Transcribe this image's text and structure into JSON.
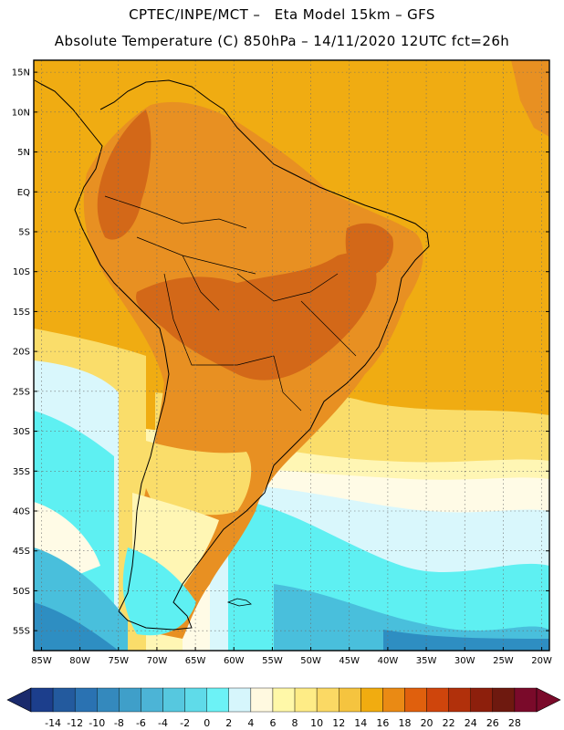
{
  "header": {
    "title_line1": "CPTEC/INPE/MCT –   Eta Model 15km – GFS",
    "title_line2": "Absolute Temperature (C) 850hPa – 14/11/2020 12UTC fct=26h"
  },
  "map": {
    "lat_labels": [
      "15N",
      "10N",
      "5N",
      "EQ",
      "5S",
      "10S",
      "15S",
      "20S",
      "25S",
      "30S",
      "35S",
      "40S",
      "45S",
      "50S",
      "55S"
    ],
    "lat_values": [
      15,
      10,
      5,
      0,
      -5,
      -10,
      -15,
      -20,
      -25,
      -30,
      -35,
      -40,
      -45,
      -50,
      -55
    ],
    "lon_labels": [
      "85W",
      "80W",
      "75W",
      "70W",
      "65W",
      "60W",
      "55W",
      "50W",
      "45W",
      "40W",
      "35W",
      "30W",
      "25W",
      "20W"
    ],
    "lon_values": [
      -85,
      -80,
      -75,
      -70,
      -65,
      -60,
      -55,
      -50,
      -45,
      -40,
      -35,
      -30,
      -25,
      -20
    ],
    "lon_range": [
      -86,
      -19
    ],
    "lat_range": [
      -57.5,
      16.5
    ]
  },
  "colorbar": {
    "labels": [
      "-14",
      "-12",
      "-10",
      "-8",
      "-6",
      "-4",
      "-2",
      "0",
      "2",
      "4",
      "6",
      "8",
      "10",
      "12",
      "14",
      "16",
      "18",
      "20",
      "22",
      "24",
      "26",
      "28"
    ],
    "colors": [
      "#1c3e8c",
      "#235a9e",
      "#2a72b2",
      "#3489bd",
      "#3f9fc9",
      "#4cb4d6",
      "#56c8df",
      "#5fdbe9",
      "#6cf2f6",
      "#d6f6fc",
      "#fff9e0",
      "#fff8a8",
      "#feec86",
      "#fbd964",
      "#f5c43f",
      "#f1ac10",
      "#ea8a14",
      "#e0600d",
      "#cf450c",
      "#b1300b",
      "#8d1f0c",
      "#6e190f",
      "#7a0a2a"
    ],
    "left_arrow_color": "#1a2a6c",
    "right_arrow_color": "#7a0a2a"
  },
  "palette": {
    "ocean_warm": "#f0ac12",
    "land_warm": "#e89022",
    "land_hot": "#d36818",
    "mid_yellow": "#fadd6a",
    "pale_yellow": "#fff6b4",
    "cream": "#fffbe6",
    "pale_cyan": "#d9f7fc",
    "cyan": "#5ef0f2",
    "mid_blue": "#49bfdc",
    "deep_blue": "#2e8ec2"
  }
}
